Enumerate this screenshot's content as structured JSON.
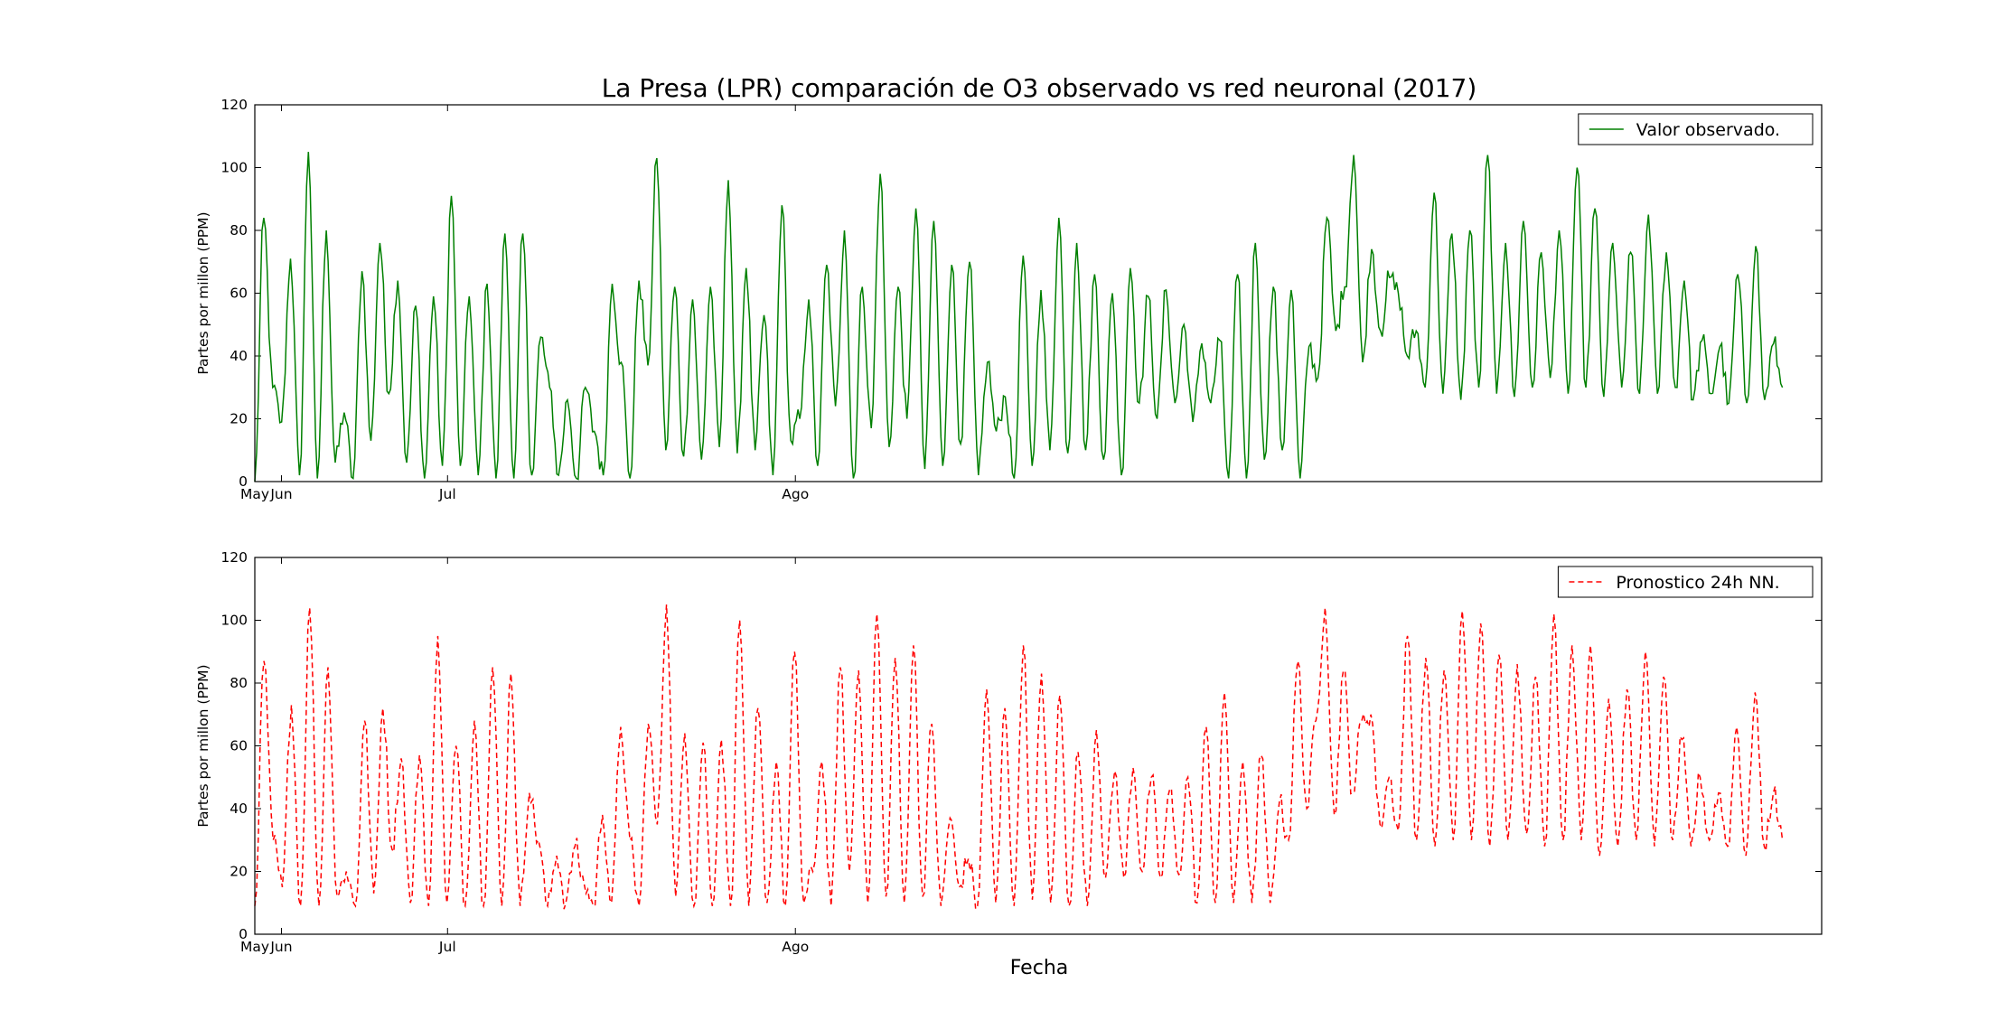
{
  "chart_data": {
    "type": "line",
    "title": "La Presa (LPR) comparación de O3 observado vs red neuronal (2017)",
    "xlabel": "Fecha",
    "panels": [
      {
        "ylabel": "Partes por millon (PPM)",
        "ylim": [
          0,
          120
        ],
        "yticks": [
          0,
          20,
          40,
          60,
          80,
          100,
          120
        ],
        "legend": "top-right",
        "series": [
          {
            "name": "Valor observado.",
            "color": "#008000",
            "style": "solid",
            "approx_daily_values": [
              0,
              84,
              30,
              19,
              71,
              2,
              105,
              1,
              80,
              6,
              22,
              1,
              67,
              13,
              76,
              28,
              64,
              6,
              56,
              1,
              59,
              5,
              91,
              5,
              59,
              2,
              63,
              1,
              79,
              1,
              79,
              2,
              46,
              30,
              2,
              26,
              1,
              30,
              16,
              2,
              63,
              38,
              1,
              64,
              37,
              103,
              10,
              62,
              8,
              58,
              7,
              62,
              11,
              96,
              9,
              68,
              10,
              53,
              2,
              88,
              13,
              20,
              58,
              5,
              69,
              24,
              80,
              1,
              62,
              17,
              98,
              11,
              62,
              20,
              87,
              4,
              83,
              5,
              69,
              12,
              70,
              2,
              38,
              16,
              27,
              1,
              72,
              5,
              61,
              10,
              84,
              9,
              76,
              10,
              66,
              7,
              60,
              2,
              68,
              25,
              59,
              20,
              61,
              25,
              50,
              19,
              44,
              25,
              45,
              1,
              66,
              1,
              76,
              7,
              62,
              10,
              61,
              1,
              43,
              33,
              84,
              48,
              62,
              104,
              38,
              74,
              48,
              65,
              60,
              40,
              48,
              30,
              92,
              28,
              79,
              26,
              80,
              30,
              104,
              28,
              76,
              27,
              83,
              30,
              73,
              33,
              80,
              28,
              100,
              30,
              87,
              27,
              76,
              30,
              73,
              28,
              85,
              28,
              73,
              30,
              64,
              26,
              45,
              28,
              43,
              25,
              66,
              25,
              75,
              26,
              44,
              30
            ]
          }
        ]
      },
      {
        "ylabel": "Partes por millon (PPM)",
        "ylim": [
          0,
          120
        ],
        "yticks": [
          0,
          20,
          40,
          60,
          80,
          100,
          120
        ],
        "legend": "top-right",
        "series": [
          {
            "name": "Pronostico 24h NN.",
            "color": "#ff0000",
            "style": "dashed",
            "approx_daily_values": [
              9,
              87,
              30,
              15,
              73,
              9,
              104,
              9,
              85,
              12,
              20,
              9,
              68,
              13,
              72,
              27,
              56,
              10,
              57,
              9,
              95,
              10,
              60,
              9,
              68,
              9,
              85,
              9,
              83,
              9,
              45,
              30,
              9,
              25,
              10,
              28,
              16,
              9,
              38,
              10,
              66,
              30,
              9,
              67,
              35,
              105,
              12,
              64,
              9,
              61,
              9,
              62,
              9,
              100,
              9,
              72,
              10,
              55,
              9,
              90,
              10,
              20,
              55,
              9,
              85,
              20,
              84,
              10,
              102,
              12,
              88,
              10,
              92,
              12,
              67,
              9,
              37,
              15,
              24,
              9,
              78,
              10,
              72,
              9,
              92,
              11,
              83,
              10,
              76,
              9,
              58,
              9,
              65,
              18,
              52,
              18,
              53,
              20,
              50,
              18,
              46,
              19,
              50,
              10,
              66,
              10,
              77,
              10,
              55,
              10,
              57,
              10,
              42,
              30,
              87,
              40,
              68,
              104,
              38,
              84,
              45,
              68,
              70,
              35,
              50,
              33,
              95,
              30,
              88,
              28,
              84,
              30,
              103,
              30,
              99,
              28,
              89,
              30,
              86,
              32,
              82,
              28,
              102,
              30,
              92,
              30,
              92,
              25,
              75,
              28,
              78,
              30,
              90,
              28,
              82,
              30,
              62,
              28,
              50,
              30,
              45,
              28,
              66,
              25,
              77,
              28,
              45,
              30
            ]
          }
        ]
      }
    ],
    "x_tick_labels": [
      "May",
      "Jun",
      "Jul",
      "Ago"
    ],
    "x_tick_fractions": [
      0.0,
      0.017,
      0.123,
      0.345
    ],
    "grid": false
  }
}
